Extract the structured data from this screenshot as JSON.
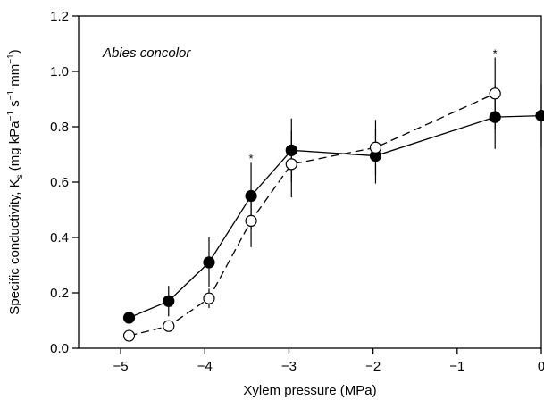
{
  "chart_data": {
    "type": "scatter",
    "xlabel": "Xylem pressure (MPa)",
    "ylabel": {
      "prefix": "Specific conductivity, K",
      "sub": "s",
      "units_open": " (mg kPa",
      "sup1": "−1",
      "mid1": " s",
      "sup2": "−1",
      "mid2": " mm",
      "sup3": "−1",
      "units_close": ")"
    },
    "xlim": [
      -5.5,
      0
    ],
    "ylim": [
      0,
      1.2
    ],
    "xticks": [
      -5,
      -4,
      -3,
      -2,
      -1,
      0
    ],
    "xtick_labels": [
      "−5",
      "−4",
      "−3",
      "−2",
      "−1",
      "0"
    ],
    "yticks": [
      0,
      0.2,
      0.4,
      0.6,
      0.8,
      1.0,
      1.2
    ],
    "ytick_labels": [
      "0.0",
      "0.2",
      "0.4",
      "0.6",
      "0.8",
      "1.0",
      "1.2"
    ],
    "annotation": "Abies concolor",
    "series": [
      {
        "marker": "filled-circle",
        "line": "solid",
        "color": "#000000",
        "points": [
          {
            "x": -4.9,
            "y": 0.11,
            "err": 0.015
          },
          {
            "x": -4.43,
            "y": 0.17,
            "err": 0.055
          },
          {
            "x": -3.95,
            "y": 0.31,
            "err": 0.09
          },
          {
            "x": -3.45,
            "y": 0.55,
            "err": 0.12
          },
          {
            "x": -2.97,
            "y": 0.715,
            "err": 0.115
          },
          {
            "x": -1.97,
            "y": 0.695,
            "err": 0.1
          },
          {
            "x": -0.55,
            "y": 0.835,
            "err": 0.115
          },
          {
            "x": 0.0,
            "y": 0.84,
            "err": 0.115
          }
        ]
      },
      {
        "marker": "open-circle",
        "line": "dashed",
        "color": "#000000",
        "points": [
          {
            "x": -4.9,
            "y": 0.045,
            "err": 0.0
          },
          {
            "x": -4.43,
            "y": 0.08,
            "err": 0.0
          },
          {
            "x": -3.95,
            "y": 0.18,
            "err": 0.035
          },
          {
            "x": -3.45,
            "y": 0.46,
            "err": 0.095
          },
          {
            "x": -2.97,
            "y": 0.665,
            "err": 0.12
          },
          {
            "x": -1.97,
            "y": 0.725,
            "err": 0.1
          },
          {
            "x": -0.55,
            "y": 0.92,
            "err": 0.13
          }
        ]
      }
    ],
    "significance_markers": [
      {
        "x": -3.45,
        "y": 0.69,
        "text": "*"
      },
      {
        "x": -0.55,
        "y": 1.07,
        "text": "*"
      }
    ]
  }
}
